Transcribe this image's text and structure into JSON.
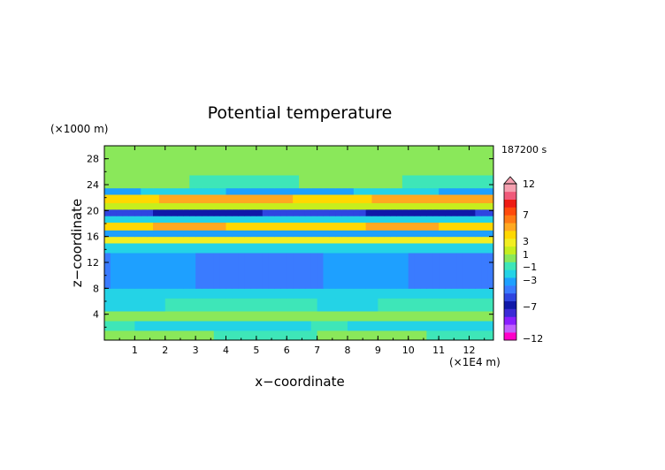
{
  "chart_data": {
    "type": "heatmap",
    "title": "Potential temperature",
    "xlabel": "x−coordinate",
    "ylabel": "z−coordinate",
    "x_unit": "(×1E4 m)",
    "y_unit": "(×1000 m)",
    "time_label": "187200 s",
    "xlim": [
      0,
      12.8
    ],
    "ylim": [
      0,
      30
    ],
    "x_ticks": [
      "1",
      "2",
      "3",
      "4",
      "5",
      "6",
      "7",
      "8",
      "9",
      "10",
      "11",
      "12"
    ],
    "y_ticks": [
      "4",
      "8",
      "12",
      "16",
      "20",
      "24",
      "28"
    ],
    "colorbar": {
      "labels": [
        "12",
        "7",
        "3",
        "1",
        "−1",
        "−3",
        "−7",
        "−12"
      ],
      "colors": [
        "#ff00c8",
        "#c060ff",
        "#8a1fff",
        "#3b2bd6",
        "#1018a8",
        "#2f45e0",
        "#3a7bff",
        "#1ea0ff",
        "#24d3e6",
        "#3ee6b8",
        "#8ae85a",
        "#c6ee1e",
        "#f2ee22",
        "#ffd800",
        "#ffa820",
        "#ff7a14",
        "#ff4a0c",
        "#ee1c14",
        "#f05a7a",
        "#f5a0b0"
      ]
    },
    "bands": [
      {
        "z0": 0.0,
        "z1": 1.5,
        "value": 0.0
      },
      {
        "z0": 1.5,
        "z1": 3.0,
        "value": -1.5
      },
      {
        "z0": 3.0,
        "z1": 4.5,
        "value": 0.5
      },
      {
        "z0": 4.5,
        "z1": 6.5,
        "value": -1.0
      },
      {
        "z0": 6.5,
        "z1": 8.0,
        "value": -2.0
      },
      {
        "z0": 8.0,
        "z1": 13.5,
        "value": -3.8
      },
      {
        "z0": 13.5,
        "z1": 15.0,
        "value": -2.0
      },
      {
        "z0": 15.0,
        "z1": 16.0,
        "value": 3.0
      },
      {
        "z0": 16.0,
        "z1": 17.0,
        "value": -3.0
      },
      {
        "z0": 17.0,
        "z1": 18.2,
        "value": 4.5
      },
      {
        "z0": 18.2,
        "z1": 19.2,
        "value": -2.0
      },
      {
        "z0": 19.2,
        "z1": 20.2,
        "value": -6.0
      },
      {
        "z0": 20.2,
        "z1": 21.2,
        "value": 2.0
      },
      {
        "z0": 21.2,
        "z1": 22.5,
        "value": 5.0
      },
      {
        "z0": 22.5,
        "z1": 23.5,
        "value": -2.5
      },
      {
        "z0": 23.5,
        "z1": 25.5,
        "value": 0.0
      },
      {
        "z0": 25.5,
        "z1": 30.0,
        "value": 0.5
      }
    ]
  }
}
